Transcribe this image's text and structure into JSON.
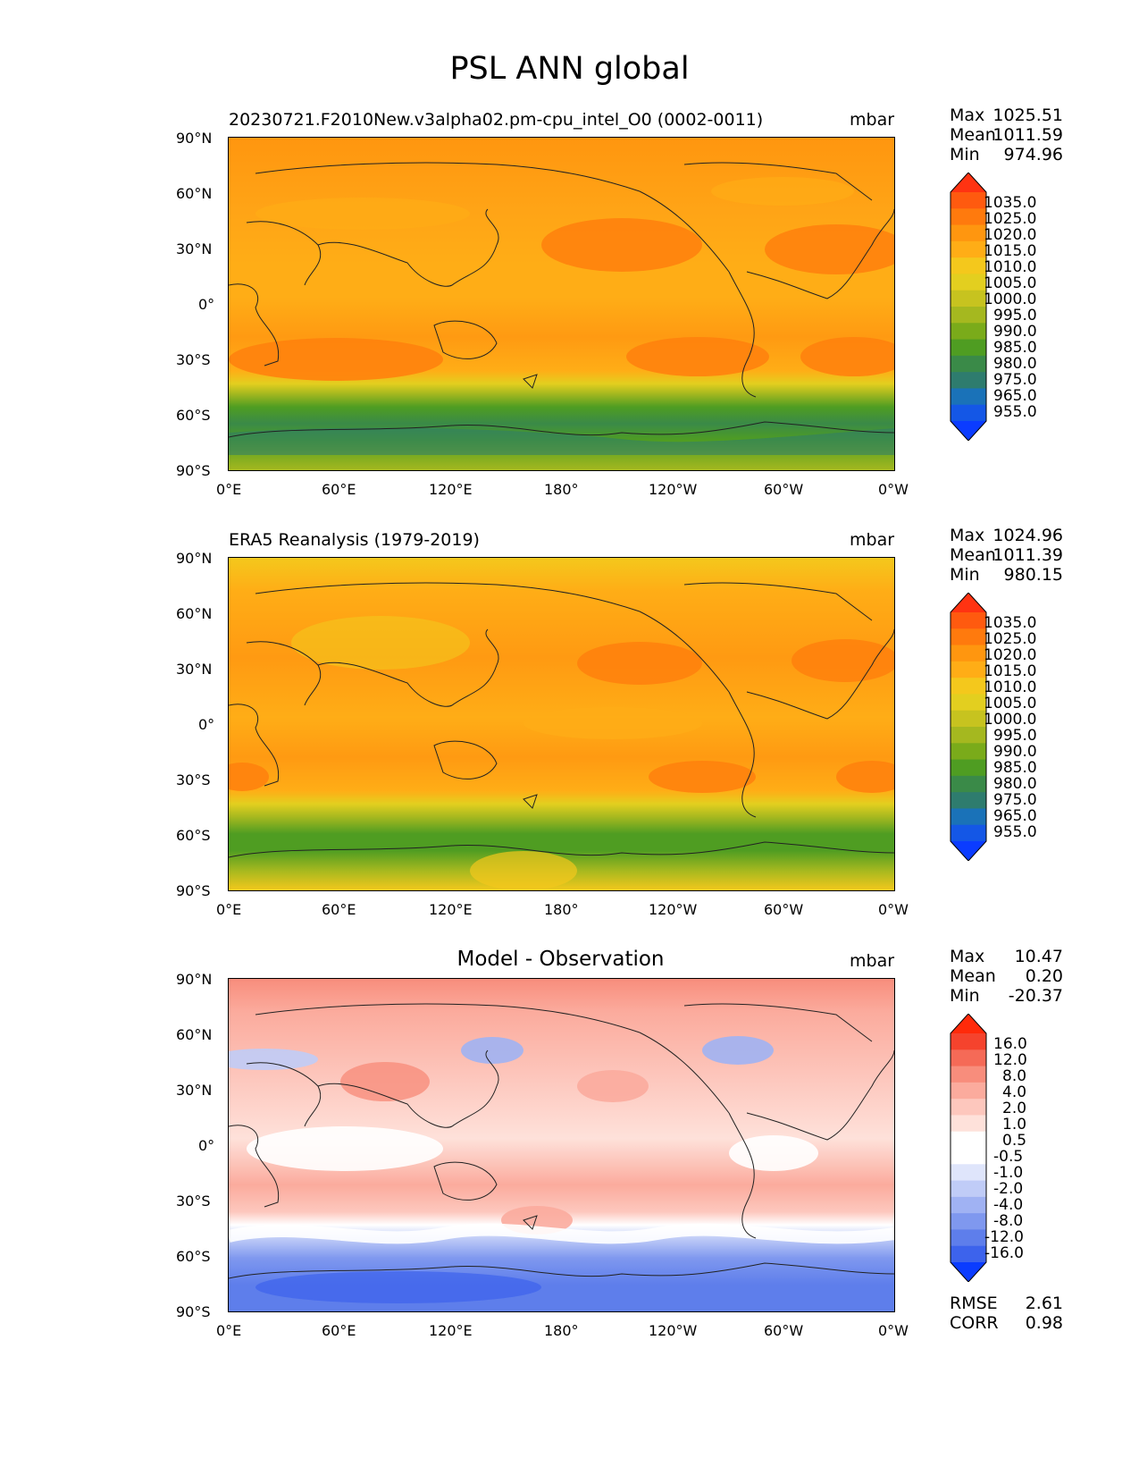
{
  "suptitle": "PSL ANN global",
  "axes": {
    "lat_labels": [
      "90°N",
      "60°N",
      "30°N",
      "0°",
      "30°S",
      "60°S",
      "90°S"
    ],
    "lon_labels": [
      "0°E",
      "60°E",
      "120°E",
      "180°",
      "120°W",
      "60°W",
      "0°W"
    ]
  },
  "panels": [
    {
      "title": "20230721.F2010New.v3alpha02.pm-cpu_intel_O0 (0002-0011)",
      "units": "mbar",
      "stats": {
        "max_label": "Max",
        "max": "1025.51",
        "mean_label": "Mean",
        "mean": "1011.59",
        "min_label": "Min",
        "min": "974.96"
      },
      "colorbar": {
        "labels": [
          "1035.0",
          "1025.0",
          "1020.0",
          "1015.0",
          "1010.0",
          "1005.0",
          "1000.0",
          "995.0",
          "990.0",
          "985.0",
          "980.0",
          "975.0",
          "965.0",
          "955.0"
        ],
        "colors": [
          "#ff3312",
          "#ff5a0f",
          "#ff7a0d",
          "#ff960f",
          "#ffad16",
          "#f4c81c",
          "#e3cf1f",
          "#c7c31f",
          "#a5b81f",
          "#7aab1a",
          "#4f9d22",
          "#3a8a48",
          "#2e7c6e",
          "#1a72b8",
          "#1457e6",
          "#0b3cff"
        ]
      },
      "map_style": "field"
    },
    {
      "title": "ERA5 Reanalysis (1979-2019)",
      "units": "mbar",
      "stats": {
        "max_label": "Max",
        "max": "1024.96",
        "mean_label": "Mean",
        "mean": "1011.39",
        "min_label": "Min",
        "min": "980.15"
      },
      "colorbar": {
        "labels": [
          "1035.0",
          "1025.0",
          "1020.0",
          "1015.0",
          "1010.0",
          "1005.0",
          "1000.0",
          "995.0",
          "990.0",
          "985.0",
          "980.0",
          "975.0",
          "965.0",
          "955.0"
        ],
        "colors": [
          "#ff3312",
          "#ff5a0f",
          "#ff7a0d",
          "#ff960f",
          "#ffad16",
          "#f4c81c",
          "#e3cf1f",
          "#c7c31f",
          "#a5b81f",
          "#7aab1a",
          "#4f9d22",
          "#3a8a48",
          "#2e7c6e",
          "#1a72b8",
          "#1457e6",
          "#0b3cff"
        ]
      },
      "map_style": "field"
    },
    {
      "title": "Model - Observation",
      "units": "mbar",
      "stats": {
        "max_label": "Max",
        "max": "10.47",
        "mean_label": "Mean",
        "mean": "0.20",
        "min_label": "Min",
        "min": "-20.37"
      },
      "extra_stats": {
        "rmse_label": "RMSE",
        "rmse": "2.61",
        "corr_label": "CORR",
        "corr": "0.98"
      },
      "colorbar": {
        "labels": [
          "16.0",
          "12.0",
          "8.0",
          "4.0",
          "2.0",
          "1.0",
          "0.5",
          "-0.5",
          "-1.0",
          "-2.0",
          "-4.0",
          "-8.0",
          "-12.0",
          "-16.0"
        ],
        "colors": [
          "#ff2a0a",
          "#f5432d",
          "#f56a57",
          "#f88d7c",
          "#fbab9d",
          "#fdc7bd",
          "#fee1da",
          "#ffffff",
          "#ffffff",
          "#dfe5fb",
          "#c0ccf7",
          "#a0b2f3",
          "#7f98ef",
          "#5e7eeb",
          "#3d63ec",
          "#0b3cff"
        ]
      },
      "map_style": "diff"
    }
  ]
}
